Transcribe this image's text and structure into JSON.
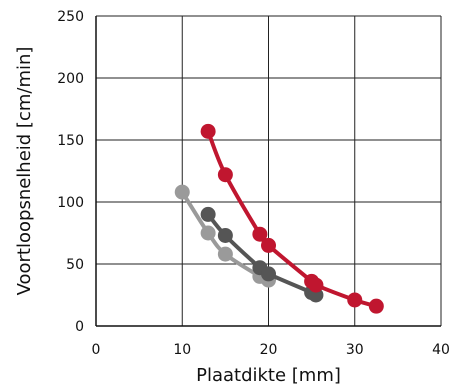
{
  "chart_data": {
    "type": "line",
    "xlabel": "Plaatdikte [mm]",
    "ylabel": "Voortloopsnelheid [cm/min]",
    "xlim": [
      0,
      40
    ],
    "ylim": [
      0,
      250
    ],
    "xticks": [
      "0",
      "10",
      "20",
      "30",
      "40"
    ],
    "yticks": [
      "0",
      "50",
      "100",
      "150",
      "200",
      "250"
    ],
    "grid": true,
    "legend": "none",
    "series": [
      {
        "color": "#c0162f",
        "x": [
          13,
          15,
          19,
          20,
          25,
          25.5,
          30,
          32.5
        ],
        "y": [
          157,
          122,
          74,
          65,
          36,
          33,
          21,
          16
        ]
      },
      {
        "color": "#555555",
        "x": [
          13,
          15,
          19,
          20,
          25,
          25.5
        ],
        "y": [
          90,
          73,
          47,
          42,
          27,
          25
        ]
      },
      {
        "color": "#9a9a9a",
        "x": [
          10,
          13,
          15,
          19,
          20
        ],
        "y": [
          108,
          75,
          58,
          40,
          37
        ]
      }
    ]
  }
}
